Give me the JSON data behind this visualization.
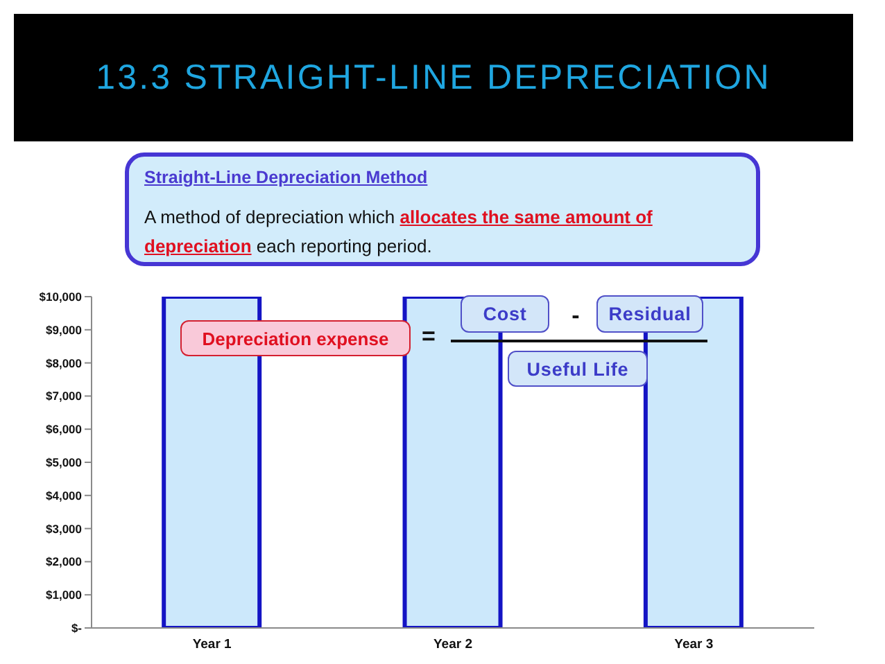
{
  "chart_data": {
    "type": "bar",
    "title": "13.3 STRAIGHT-LINE DEPRECIATION",
    "subtitle": "Straight-Line Depreciation Method",
    "annotations": [
      "A method of depreciation which",
      "allocates the same amount of depreciation",
      "each reporting period.",
      "Depreciation expense",
      "=",
      "Cost",
      "-",
      "Residual",
      "Useful Life"
    ],
    "categories": [
      "Year 1",
      "Year 2",
      "Year 3"
    ],
    "values": [
      10000,
      10000,
      10000
    ],
    "color": "#cce8fb",
    "ylim": [
      0,
      10000
    ],
    "yticks": [
      {
        "value": 0,
        "label": "$-"
      },
      {
        "value": 1000,
        "label": "$1,000"
      },
      {
        "value": 2000,
        "label": "$2,000"
      },
      {
        "value": 3000,
        "label": "$3,000"
      },
      {
        "value": 4000,
        "label": "$4,000"
      },
      {
        "value": 5000,
        "label": "$5,000"
      },
      {
        "value": 6000,
        "label": "$6,000"
      },
      {
        "value": 7000,
        "label": "$7,000"
      },
      {
        "value": 8000,
        "label": "$8,000"
      },
      {
        "value": 9000,
        "label": "$9,000"
      },
      {
        "value": 10000,
        "label": "$10,000"
      }
    ]
  }
}
